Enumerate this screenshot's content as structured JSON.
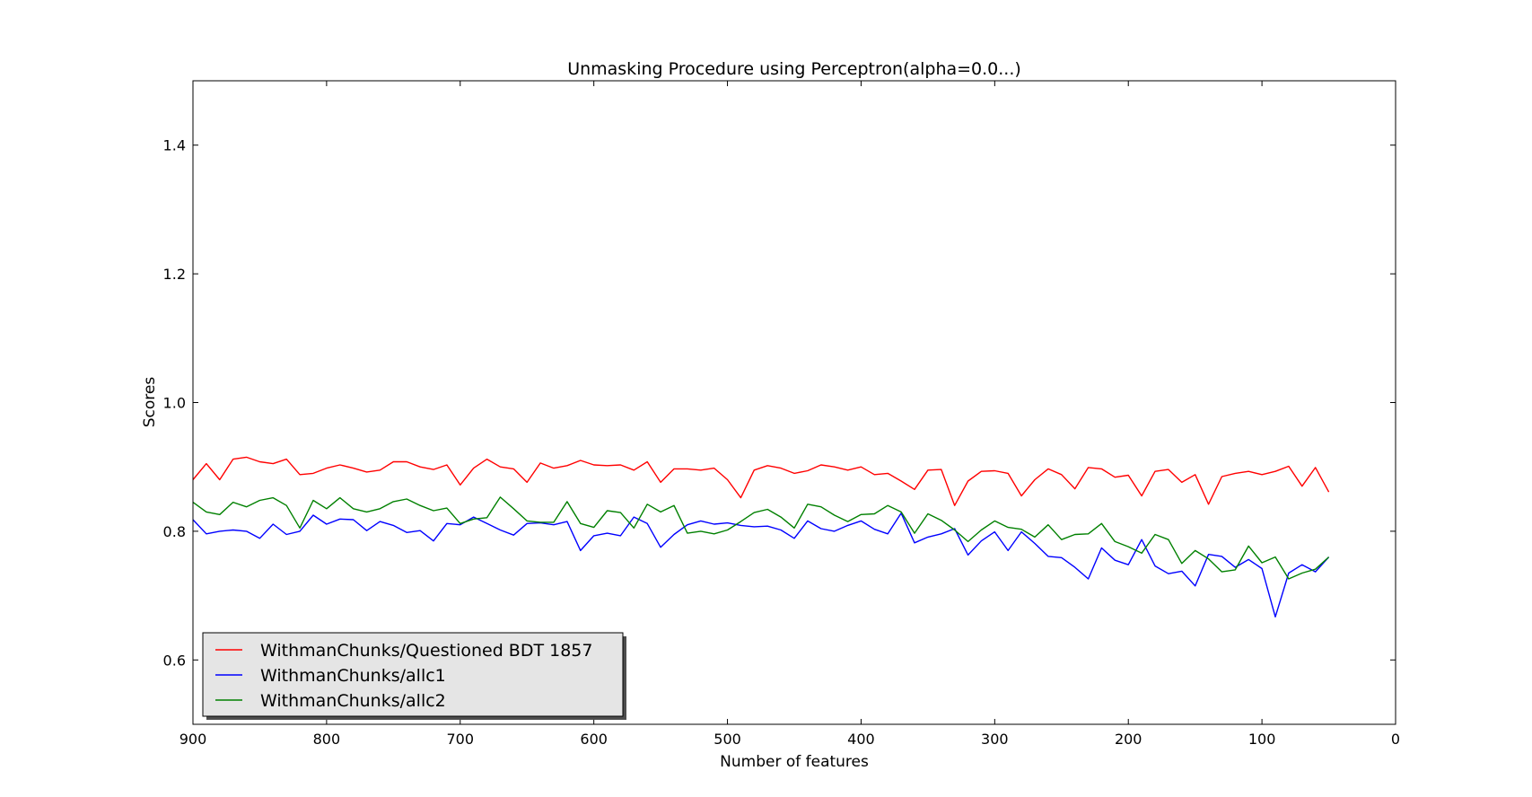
{
  "chart_data": {
    "type": "line",
    "title": "Unmasking Procedure using Perceptron(alpha=0.0...)",
    "xlabel": "Number of features",
    "ylabel": "Scores",
    "xlim": [
      900,
      0
    ],
    "ylim": [
      0.5,
      1.5
    ],
    "xticks": [
      900,
      800,
      700,
      600,
      500,
      400,
      300,
      200,
      100,
      0
    ],
    "xtick_labels": [
      "900",
      "800",
      "700",
      "600",
      "500",
      "400",
      "300",
      "200",
      "100",
      "0"
    ],
    "yticks": [
      0.6,
      0.8,
      1.0,
      1.2,
      1.4
    ],
    "ytick_labels": [
      "0.6",
      "0.8",
      "1.0",
      "1.2",
      "1.4"
    ],
    "grid": false,
    "legend_position": "lower-left",
    "x": [
      900,
      890,
      880,
      870,
      860,
      850,
      840,
      830,
      820,
      810,
      800,
      790,
      780,
      770,
      760,
      750,
      740,
      730,
      720,
      710,
      700,
      690,
      680,
      670,
      660,
      650,
      640,
      630,
      620,
      610,
      600,
      590,
      580,
      570,
      560,
      550,
      540,
      530,
      520,
      510,
      500,
      490,
      480,
      470,
      460,
      450,
      440,
      430,
      420,
      410,
      400,
      390,
      380,
      370,
      360,
      350,
      340,
      330,
      320,
      310,
      300,
      290,
      280,
      270,
      260,
      250,
      240,
      230,
      220,
      210,
      200,
      190,
      180,
      170,
      160,
      150,
      140,
      130,
      120,
      110,
      100,
      90,
      80,
      70,
      60,
      50
    ],
    "series": [
      {
        "name": "WithmanChunks/Questioned BDT 1857",
        "color": "#ff0000",
        "values": [
          0.88,
          0.905,
          0.88,
          0.912,
          0.915,
          0.908,
          0.905,
          0.912,
          0.888,
          0.89,
          0.898,
          0.903,
          0.898,
          0.892,
          0.895,
          0.908,
          0.908,
          0.9,
          0.896,
          0.903,
          0.872,
          0.898,
          0.912,
          0.9,
          0.897,
          0.876,
          0.906,
          0.898,
          0.902,
          0.91,
          0.903,
          0.902,
          0.903,
          0.895,
          0.908,
          0.876,
          0.897,
          0.897,
          0.895,
          0.898,
          0.88,
          0.852,
          0.895,
          0.902,
          0.898,
          0.89,
          0.894,
          0.903,
          0.9,
          0.895,
          0.9,
          0.888,
          0.89,
          0.878,
          0.865,
          0.895,
          0.896,
          0.84,
          0.878,
          0.893,
          0.894,
          0.89,
          0.855,
          0.88,
          0.897,
          0.888,
          0.866,
          0.899,
          0.897,
          0.884,
          0.887,
          0.855,
          0.893,
          0.896,
          0.876,
          0.888,
          0.842,
          0.885,
          0.89,
          0.893,
          0.888,
          0.893,
          0.901,
          0.87,
          0.899,
          0.861
        ]
      },
      {
        "name": "WithmanChunks/allc1",
        "color": "#0000ff",
        "values": [
          0.818,
          0.796,
          0.8,
          0.802,
          0.8,
          0.789,
          0.811,
          0.795,
          0.8,
          0.825,
          0.811,
          0.819,
          0.818,
          0.801,
          0.815,
          0.809,
          0.798,
          0.801,
          0.785,
          0.812,
          0.81,
          0.822,
          0.812,
          0.802,
          0.794,
          0.812,
          0.813,
          0.81,
          0.815,
          0.77,
          0.793,
          0.797,
          0.793,
          0.822,
          0.812,
          0.775,
          0.795,
          0.81,
          0.816,
          0.811,
          0.813,
          0.809,
          0.807,
          0.808,
          0.802,
          0.789,
          0.816,
          0.804,
          0.8,
          0.809,
          0.816,
          0.803,
          0.796,
          0.828,
          0.782,
          0.791,
          0.796,
          0.804,
          0.763,
          0.785,
          0.799,
          0.77,
          0.799,
          0.781,
          0.761,
          0.759,
          0.744,
          0.726,
          0.774,
          0.755,
          0.748,
          0.787,
          0.746,
          0.734,
          0.738,
          0.715,
          0.764,
          0.761,
          0.744,
          0.756,
          0.742,
          0.667,
          0.735,
          0.748,
          0.737,
          0.76
        ]
      },
      {
        "name": "WithmanChunks/allc2",
        "color": "#008000",
        "values": [
          0.845,
          0.83,
          0.826,
          0.845,
          0.838,
          0.848,
          0.852,
          0.84,
          0.805,
          0.848,
          0.835,
          0.852,
          0.835,
          0.83,
          0.835,
          0.846,
          0.85,
          0.84,
          0.832,
          0.836,
          0.812,
          0.819,
          0.821,
          0.853,
          0.835,
          0.816,
          0.814,
          0.814,
          0.846,
          0.812,
          0.806,
          0.832,
          0.829,
          0.805,
          0.842,
          0.83,
          0.84,
          0.797,
          0.8,
          0.796,
          0.802,
          0.815,
          0.829,
          0.834,
          0.822,
          0.805,
          0.842,
          0.838,
          0.825,
          0.815,
          0.826,
          0.827,
          0.84,
          0.83,
          0.797,
          0.827,
          0.817,
          0.802,
          0.784,
          0.802,
          0.816,
          0.806,
          0.803,
          0.791,
          0.81,
          0.787,
          0.795,
          0.796,
          0.812,
          0.784,
          0.776,
          0.766,
          0.795,
          0.787,
          0.75,
          0.77,
          0.757,
          0.737,
          0.74,
          0.777,
          0.751,
          0.76,
          0.726,
          0.735,
          0.741,
          0.76
        ]
      }
    ]
  }
}
